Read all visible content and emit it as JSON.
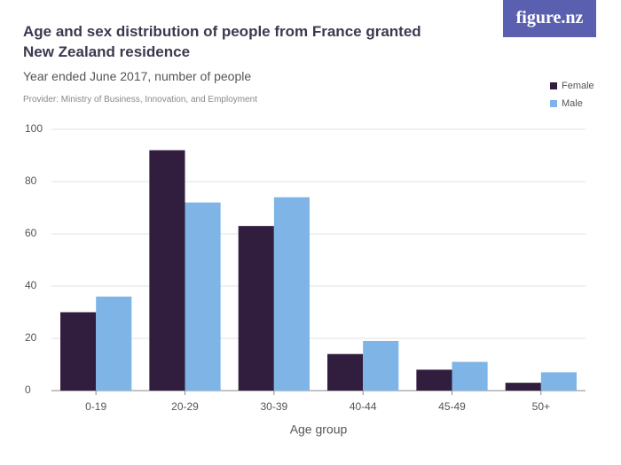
{
  "chart_data": {
    "type": "bar",
    "title": "Age and sex distribution of people from France granted New Zealand residence",
    "subtitle": "Year ended June 2017, number of people",
    "provider": "Provider: Ministry of Business, Innovation, and Employment",
    "logo": "figure.nz",
    "x_label": "Age group",
    "categories": [
      "0-19",
      "20-29",
      "30-39",
      "40-44",
      "45-49",
      "50+"
    ],
    "series": [
      {
        "name": "Female",
        "color": "#311d3d",
        "values": [
          30,
          92,
          63,
          14,
          8,
          3
        ]
      },
      {
        "name": "Male",
        "color": "#7fb5e6",
        "values": [
          36,
          72,
          74,
          19,
          11,
          7
        ]
      }
    ],
    "ylim": [
      0,
      100
    ],
    "yticks": [
      0,
      20,
      40,
      60,
      80,
      100
    ],
    "grid": true,
    "legend": "top-right"
  }
}
